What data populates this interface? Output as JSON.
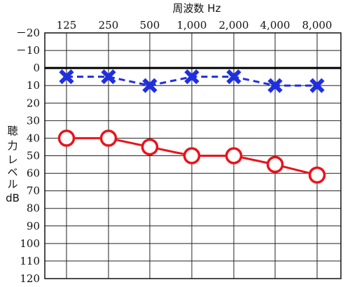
{
  "chart_data": {
    "type": "line",
    "title": "周波数 Hz",
    "ylabel_lines": [
      "聴",
      "力",
      "レ",
      "ベ",
      "ル",
      "dB"
    ],
    "x": [
      "125",
      "250",
      "500",
      "1,000",
      "2,000",
      "4,000",
      "8,000"
    ],
    "ylim": [
      -20,
      120
    ],
    "y_inverted": true,
    "y_ticks": [
      -20,
      -10,
      0,
      10,
      20,
      30,
      40,
      50,
      60,
      70,
      80,
      90,
      100,
      110,
      120
    ],
    "y_tick_labels": [
      "－20",
      "－10",
      "0",
      "10",
      "20",
      "30",
      "40",
      "50",
      "60",
      "70",
      "80",
      "90",
      "100",
      "110",
      "120"
    ],
    "grid": true,
    "reference_line": 0,
    "series": [
      {
        "values": [
          5,
          5,
          10,
          5,
          5,
          10,
          10
        ],
        "marker": "x",
        "line_style": "dashed",
        "color": "#1f2fe0"
      },
      {
        "values": [
          40,
          40,
          45,
          50,
          50,
          55,
          61
        ],
        "marker": "o",
        "line_style": "solid",
        "color": "#e8141c"
      }
    ]
  }
}
